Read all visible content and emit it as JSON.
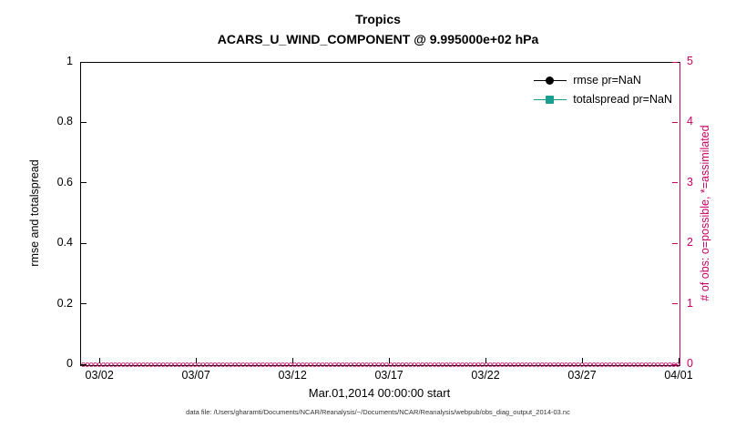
{
  "title": "Tropics",
  "subtitle": "ACARS_U_WIND_COMPONENT @ 9.995000e+02 hPa",
  "axes": {
    "left_label": "rmse and totalspread",
    "right_label": "# of obs: o=possible, *=assimilated",
    "x_label": "Mar.01,2014 00:00:00 start"
  },
  "legend": {
    "items": [
      {
        "label": "rmse pr=NaN",
        "color": "#000000",
        "marker": "circle"
      },
      {
        "label": "totalspread pr=NaN",
        "color": "#1a9e8f",
        "marker": "square"
      }
    ]
  },
  "caption": "data file: /Users/gharamti/Documents/NCAR/Reanalysis/~/Documents/NCAR/Reanalysis/webpub/obs_diag_output_2014-03.nc",
  "chart_data": {
    "type": "line",
    "title": "Tropics",
    "subtitle": "ACARS_U_WIND_COMPONENT @ 9.995000e+02 hPa",
    "xlabel": "Mar.01,2014 00:00:00 start",
    "ylabel_left": "rmse and totalspread",
    "ylabel_right": "# of obs: o=possible, *=assimilated",
    "grid": false,
    "legend_position": "top-right-inside, no box",
    "xlim_days": [
      1,
      32
    ],
    "x_ticks": [
      {
        "label": "03/02",
        "day": 2
      },
      {
        "label": "03/07",
        "day": 7
      },
      {
        "label": "03/12",
        "day": 12
      },
      {
        "label": "03/17",
        "day": 17
      },
      {
        "label": "03/22",
        "day": 22
      },
      {
        "label": "03/27",
        "day": 27
      },
      {
        "label": "04/01",
        "day": 32
      }
    ],
    "ylim_left": [
      0,
      1
    ],
    "y_ticks_left": [
      0,
      0.2,
      0.4,
      0.6,
      0.8,
      1
    ],
    "ylim_right": [
      0,
      5
    ],
    "y_ticks_right": [
      0,
      1,
      2,
      3,
      4,
      5
    ],
    "series": [
      {
        "name": "rmse pr=NaN",
        "axis": "left",
        "color": "#000000",
        "marker": "circle",
        "values": [],
        "note": "all values NaN, nothing plotted"
      },
      {
        "name": "totalspread pr=NaN",
        "axis": "left",
        "color": "#1a9e8f",
        "marker": "square",
        "values": [],
        "note": "all values NaN, nothing plotted"
      },
      {
        "name": "possible obs count",
        "axis": "right",
        "color": "#cc0066",
        "marker": "o",
        "value_constant": 0,
        "note": "dense row of o markers at y=0 spanning the full time axis"
      }
    ],
    "colors": {
      "right_axis": "#cc0066",
      "totalspread": "#1a9e8f",
      "rmse": "#000000"
    }
  }
}
